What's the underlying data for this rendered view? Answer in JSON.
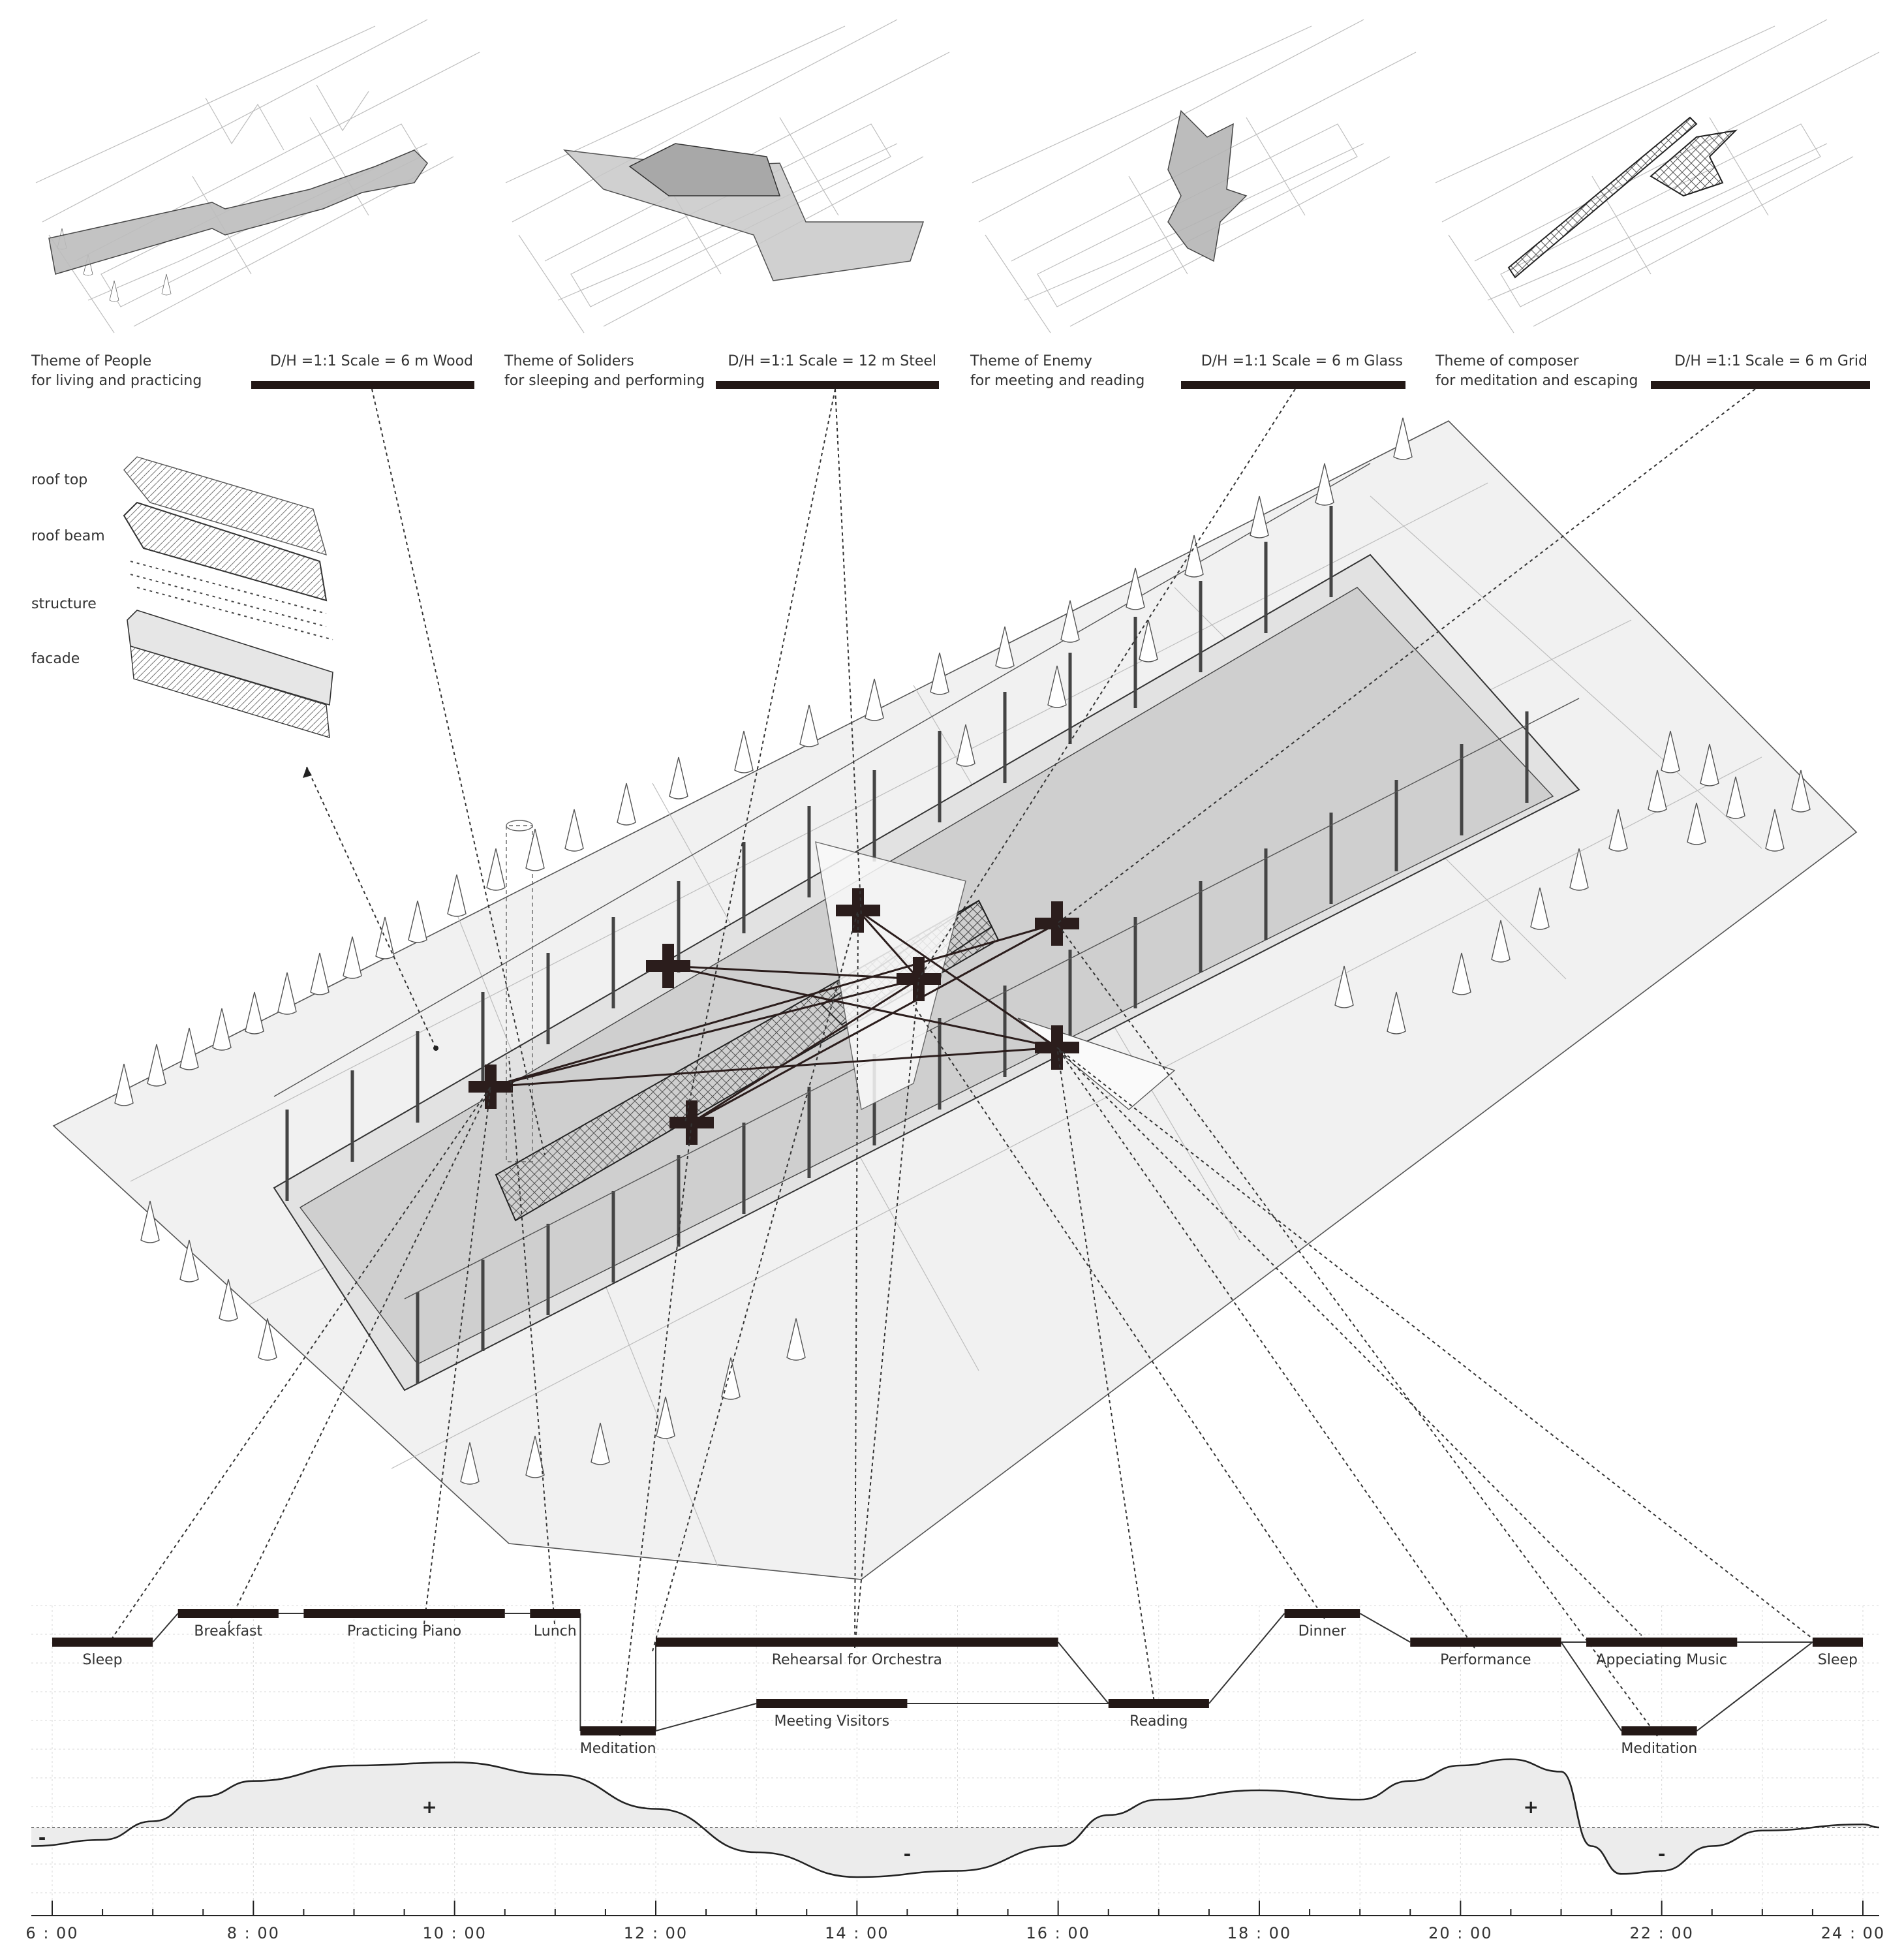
{
  "themes": [
    {
      "title": "Theme of People",
      "subtitle": "for living and practicing",
      "spec": "D/H =1:1  Scale = 6 m  Wood"
    },
    {
      "title": "Theme of Soliders",
      "subtitle": "for sleeping and performing",
      "spec": "D/H =1:1  Scale = 12 m  Steel"
    },
    {
      "title": "Theme of Enemy",
      "subtitle": "for meeting and reading",
      "spec": "D/H =1:1  Scale = 6 m  Glass"
    },
    {
      "title": "Theme of composer",
      "subtitle": "for meditation and escaping",
      "spec": "D/H =1:1  Scale = 6 m  Grid"
    }
  ],
  "layers": [
    "roof top",
    "roof beam",
    "structure",
    "facade"
  ],
  "schedule": [
    {
      "label": "Sleep",
      "start": 6.0,
      "end": 7.0,
      "level": 1
    },
    {
      "label": "Breakfast",
      "start": 7.25,
      "end": 8.25,
      "level": 0
    },
    {
      "label": "Practicing Piano",
      "start": 8.5,
      "end": 10.5,
      "level": 0
    },
    {
      "label": "Lunch",
      "start": 10.75,
      "end": 11.25,
      "level": 0
    },
    {
      "label": "Meditation",
      "start": 11.25,
      "end": 12.0,
      "level": 3
    },
    {
      "label": "Rehearsal for Orchestra",
      "start": 12.0,
      "end": 16.0,
      "level": 1
    },
    {
      "label": "Meeting Visitors",
      "start": 13.0,
      "end": 14.5,
      "level": 2
    },
    {
      "label": "Reading",
      "start": 16.5,
      "end": 17.5,
      "level": 2
    },
    {
      "label": "Dinner",
      "start": 18.25,
      "end": 19.0,
      "level": 0
    },
    {
      "label": "Performance",
      "start": 19.5,
      "end": 21.0,
      "level": 1
    },
    {
      "label": "Appeciating Music",
      "start": 21.25,
      "end": 22.75,
      "level": 1
    },
    {
      "label": "Meditation",
      "start": 21.6,
      "end": 22.35,
      "level": 3
    },
    {
      "label": "Sleep",
      "start": 23.5,
      "end": 24.0,
      "level": 1
    }
  ],
  "mood_signs": [
    "+",
    "-",
    "+",
    "-",
    "+",
    "-"
  ],
  "mood_curve": {
    "x": [
      5.7,
      6.5,
      7.0,
      7.5,
      8.0,
      9.0,
      10.0,
      11.0,
      12.0,
      13.0,
      14.0,
      15.0,
      16.0,
      16.5,
      17.0,
      18.0,
      19.0,
      19.5,
      20.0,
      20.5,
      21.0,
      21.3,
      21.6,
      22.0,
      22.5,
      23.0,
      24.0,
      24.2
    ],
    "y": [
      -0.3,
      -0.2,
      0.1,
      0.5,
      0.75,
      1.0,
      1.05,
      0.85,
      0.3,
      -0.4,
      -0.8,
      -0.7,
      -0.3,
      0.2,
      0.45,
      0.6,
      0.45,
      0.75,
      1.0,
      1.1,
      0.9,
      -0.3,
      -0.75,
      -0.7,
      -0.3,
      -0.05,
      0.05,
      0.0
    ]
  },
  "axis_ticks": [
    "6 : 00",
    "8 : 00",
    "10 : 00",
    "12 : 00",
    "14 : 00",
    "16 : 00",
    "18 : 00",
    "20 : 00",
    "22 : 00",
    "24 : 00"
  ],
  "axis_range": [
    6,
    24
  ]
}
